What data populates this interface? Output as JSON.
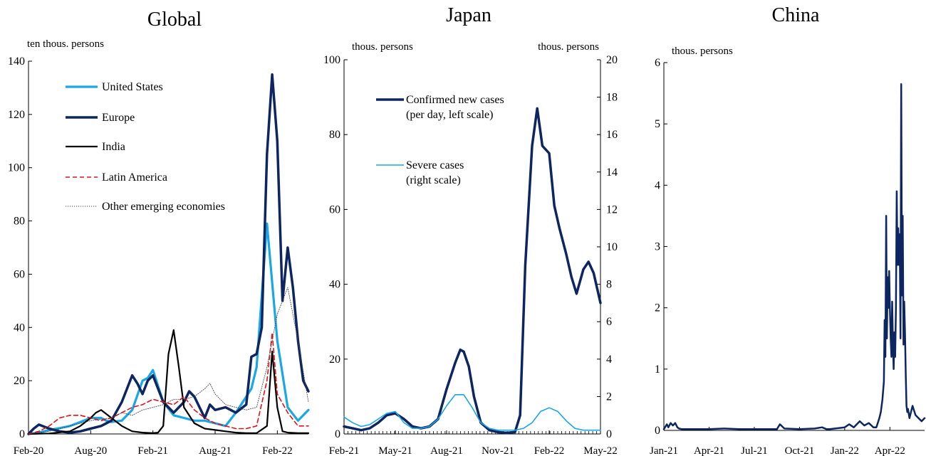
{
  "chart_data": [
    {
      "type": "line",
      "title": "Global",
      "ylabel": "ten thous. persons",
      "ylim": [
        0,
        140
      ],
      "yticks": [
        "0",
        "20",
        "40",
        "60",
        "80",
        "100",
        "120",
        "140"
      ],
      "xticks": [
        "Feb-20",
        "Aug-20",
        "Feb-21",
        "Aug-21",
        "Feb-22"
      ],
      "xlim": [
        0,
        27
      ],
      "legend_position": "upper-left",
      "series": [
        {
          "name": "United States",
          "color": "#1aa7e6",
          "style": "solid",
          "width": 3.2,
          "x": [
            0,
            1,
            2,
            3,
            4,
            5,
            6,
            7,
            7.5,
            8,
            9,
            10,
            11,
            11.5,
            12,
            13,
            14,
            15,
            16,
            17,
            18,
            19,
            20,
            21,
            21.5,
            22,
            23,
            24,
            25,
            26,
            26.5,
            27
          ],
          "y": [
            0,
            0.5,
            1.5,
            2.2,
            3,
            4.5,
            6,
            6,
            5,
            4.5,
            5,
            9,
            20,
            21,
            24,
            12,
            7,
            6,
            5,
            5,
            4,
            3,
            8,
            14,
            17,
            25,
            79,
            35,
            10,
            5,
            7,
            9
          ]
        },
        {
          "name": "Europe",
          "color": "#0d2560",
          "style": "solid",
          "width": 3.5,
          "x": [
            0,
            0.5,
            1,
            2,
            3,
            4,
            5,
            6,
            7,
            8,
            9,
            10,
            10.5,
            11,
            11.5,
            12,
            13,
            14,
            15,
            15.5,
            16,
            17,
            17.5,
            18,
            19,
            20,
            21,
            21.5,
            22,
            22.5,
            23,
            23.5,
            24,
            24.5,
            25,
            25.5,
            26,
            26.5,
            27
          ],
          "y": [
            0,
            2,
            3.5,
            2,
            1,
            0.5,
            1,
            2,
            3,
            5,
            12,
            22,
            19,
            15,
            20,
            22,
            12,
            8,
            12,
            16,
            14,
            6,
            11,
            9,
            10,
            8,
            11,
            29,
            30,
            40,
            105,
            135,
            110,
            50,
            70,
            55,
            35,
            20,
            16
          ]
        },
        {
          "name": "India",
          "color": "#000000",
          "style": "solid",
          "width": 2.2,
          "x": [
            0,
            2,
            4,
            5,
            6,
            6.5,
            7,
            8,
            9,
            10,
            11,
            12,
            12.5,
            13,
            13.5,
            14,
            14.5,
            15,
            16,
            17,
            18,
            19,
            20,
            21,
            22,
            23,
            23.5,
            24,
            24.5,
            25,
            26,
            27
          ],
          "y": [
            0,
            0.2,
            1,
            3,
            6,
            8,
            9,
            6,
            3,
            1,
            0.5,
            0.3,
            0.5,
            3,
            30,
            39,
            25,
            10,
            4,
            2,
            1.5,
            1,
            0.5,
            0.3,
            0.3,
            3,
            31,
            10,
            1,
            0.5,
            0.3,
            0.3
          ]
        },
        {
          "name": "Latin America",
          "color": "#e0131a",
          "style": "dashed",
          "width": 1.6,
          "x": [
            0,
            1,
            2,
            3,
            4,
            5,
            6,
            7,
            8,
            9,
            10,
            11,
            12,
            13,
            14,
            15,
            16,
            17,
            18,
            19,
            20,
            21,
            22,
            23,
            23.5,
            24,
            25,
            26,
            27
          ],
          "y": [
            0,
            1,
            3,
            6,
            7,
            7,
            6,
            5,
            6,
            8,
            10,
            11,
            13,
            12,
            11,
            14,
            9,
            6,
            4,
            3,
            2,
            2,
            3,
            20,
            38,
            15,
            8,
            3,
            3
          ]
        },
        {
          "name": "Other emerging economies",
          "color": "#444444",
          "style": "dotted",
          "width": 0.9,
          "x": [
            0,
            2,
            4,
            6,
            8,
            9,
            10,
            11,
            12,
            13,
            14,
            15,
            16,
            17,
            17.5,
            18,
            19,
            20,
            21,
            22,
            23,
            24,
            25,
            26,
            27
          ],
          "y": [
            0,
            1,
            3,
            5,
            6,
            8,
            7,
            9,
            10,
            11,
            13,
            13,
            14,
            17,
            19,
            15,
            11,
            10,
            9,
            10,
            25,
            45,
            55,
            35,
            12
          ]
        }
      ]
    },
    {
      "type": "line",
      "title": "Japan",
      "ylabel_left": "thous. persons",
      "ylabel_right": "thous. persons",
      "ylim_left": [
        0,
        100
      ],
      "ylim_right": [
        0,
        20
      ],
      "yticks_left": [
        "0",
        "20",
        "40",
        "60",
        "80",
        "100"
      ],
      "yticks_right": [
        "0",
        "2",
        "4",
        "6",
        "8",
        "10",
        "12",
        "14",
        "16",
        "18",
        "20"
      ],
      "xticks": [
        "Feb-21",
        "May-21",
        "Aug-21",
        "Nov-21",
        "Feb-22",
        "May-22"
      ],
      "xlim": [
        0,
        15
      ],
      "legend_position": "upper-left",
      "series": [
        {
          "name": "Confirmed new cases\n(per day, left scale)",
          "color": "#0d2560",
          "style": "solid",
          "width": 3.5,
          "axis": "left",
          "x": [
            0,
            0.5,
            1,
            1.5,
            2,
            2.5,
            3,
            3.5,
            4,
            4.5,
            5,
            5.5,
            6,
            6.5,
            6.8,
            7,
            7.3,
            7.6,
            8,
            8.5,
            9,
            9.5,
            10,
            10.3,
            10.6,
            11,
            11.3,
            11.6,
            12,
            12.3,
            12.6,
            13,
            13.3,
            13.6,
            14,
            14.3,
            14.6,
            15
          ],
          "y": [
            2,
            1.5,
            1,
            1.5,
            3,
            5,
            5.5,
            4,
            2,
            1.5,
            2,
            4,
            12,
            19,
            22.5,
            22,
            18,
            10,
            3,
            1,
            0.5,
            0.3,
            0.5,
            5,
            45,
            77,
            87,
            77,
            75,
            61,
            55,
            48,
            42,
            37.5,
            44,
            46,
            43,
            35
          ]
        },
        {
          "name": "Severe cases\n(right scale)",
          "color": "#1aa7e6",
          "style": "solid",
          "width": 1.6,
          "axis": "right",
          "x": [
            0,
            0.5,
            1,
            1.5,
            2,
            2.5,
            3,
            3.5,
            4,
            4.5,
            5,
            5.5,
            6,
            6.5,
            7,
            7.5,
            8,
            8.5,
            9,
            9.5,
            10,
            10.5,
            11,
            11.5,
            12,
            12.5,
            13,
            13.5,
            14,
            14.5,
            15
          ],
          "y": [
            0.9,
            0.6,
            0.4,
            0.5,
            0.8,
            1.1,
            1.2,
            0.6,
            0.3,
            0.3,
            0.4,
            0.8,
            1.5,
            2.1,
            2.1,
            1.4,
            0.6,
            0.3,
            0.2,
            0.2,
            0.2,
            0.3,
            0.6,
            1.2,
            1.4,
            1.2,
            0.7,
            0.3,
            0.2,
            0.2,
            0.2
          ]
        }
      ]
    },
    {
      "type": "line",
      "title": "China",
      "ylabel": "thous. persons",
      "ylim": [
        0,
        6
      ],
      "yticks": [
        "0",
        "1",
        "2",
        "3",
        "4",
        "5",
        "6"
      ],
      "xticks": [
        "Jan-21",
        "Apr-21",
        "Jul-21",
        "Oct-21",
        "Jan-22",
        "Apr-22"
      ],
      "xlim": [
        0,
        17.3
      ],
      "series": [
        {
          "name": "",
          "color": "#0d2560",
          "style": "solid",
          "width": 2.5,
          "x": [
            0,
            0.2,
            0.3,
            0.45,
            0.6,
            0.75,
            0.9,
            1,
            1.2,
            1.5,
            2,
            3,
            4,
            5,
            6,
            7,
            7.5,
            7.7,
            8,
            9,
            10,
            10.5,
            10.8,
            11,
            12,
            12.3,
            12.6,
            13,
            13.3,
            13.6,
            13.9,
            14.1,
            14.3,
            14.4,
            14.5,
            14.6,
            14.65,
            14.7,
            14.75,
            14.8,
            14.85,
            14.9,
            14.95,
            15,
            15.05,
            15.1,
            15.15,
            15.2,
            15.25,
            15.3,
            15.35,
            15.4,
            15.45,
            15.5,
            15.55,
            15.6,
            15.65,
            15.7,
            15.75,
            15.8,
            15.85,
            15.9,
            15.95,
            16,
            16.05,
            16.1,
            16.15,
            16.2,
            16.3,
            16.5,
            16.7,
            16.9,
            17.1,
            17.3
          ],
          "y": [
            0.02,
            0.1,
            0.05,
            0.12,
            0.08,
            0.12,
            0.05,
            0.03,
            0.02,
            0.02,
            0.02,
            0.02,
            0.03,
            0.02,
            0.02,
            0.02,
            0.02,
            0.1,
            0.03,
            0.02,
            0.03,
            0.05,
            0.02,
            0.02,
            0.05,
            0.1,
            0.05,
            0.15,
            0.08,
            0.12,
            0.05,
            0.05,
            0.2,
            0.3,
            0.5,
            0.8,
            1.8,
            1.2,
            3.5,
            1.5,
            2.5,
            2,
            2.6,
            2,
            1.5,
            1.2,
            2.1,
            1.4,
            1,
            1.6,
            1.2,
            2,
            3.9,
            2.7,
            3.3,
            2.7,
            3.2,
            1.5,
            5.65,
            2.2,
            3.5,
            1.4,
            2.1,
            1.6,
            0.9,
            0.4,
            0.3,
            0.35,
            0.2,
            0.4,
            0.25,
            0.2,
            0.15,
            0.2
          ]
        }
      ]
    }
  ]
}
